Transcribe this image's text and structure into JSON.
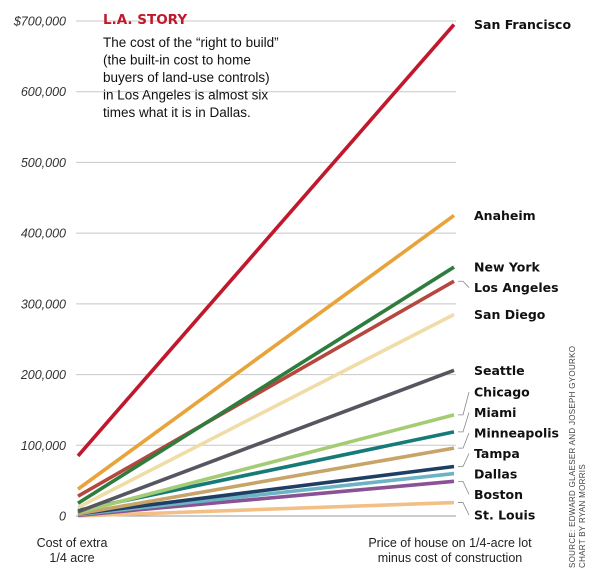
{
  "chart_data": {
    "type": "line",
    "title": "L.A. STORY",
    "subtitle_lines": [
      "The cost of the “right to build”",
      "(the built-in cost to home",
      "buyers of land-use controls)",
      "in Los Angeles is almost six",
      "times what it is in Dallas."
    ],
    "x_labels": {
      "left": [
        "Cost of extra",
        "1/4 acre"
      ],
      "right": [
        "Price of house on 1/4-acre lot",
        "minus cost of construction"
      ]
    },
    "ylim": [
      0,
      700000
    ],
    "y_ticks": [
      {
        "value": 700000,
        "label": "$700,000"
      },
      {
        "value": 600000,
        "label": "600,000"
      },
      {
        "value": 500000,
        "label": "500,000"
      },
      {
        "value": 400000,
        "label": "400,000"
      },
      {
        "value": 300000,
        "label": "300,000"
      },
      {
        "value": 200000,
        "label": "200,000"
      },
      {
        "value": 100000,
        "label": "100,000"
      },
      {
        "value": 0,
        "label": "0"
      }
    ],
    "series": [
      {
        "name": "San Francisco",
        "start": 85000,
        "end": 695000,
        "color": "#c0182c"
      },
      {
        "name": "Anaheim",
        "start": 38000,
        "end": 425000,
        "color": "#e8a33a"
      },
      {
        "name": "New York",
        "start": 18000,
        "end": 352000,
        "color": "#2e7d3e"
      },
      {
        "name": "Los Angeles",
        "start": 28000,
        "end": 332000,
        "color": "#b5473e"
      },
      {
        "name": "San Diego",
        "start": 12000,
        "end": 285000,
        "color": "#f0dca6"
      },
      {
        "name": "Seattle",
        "start": 6000,
        "end": 206000,
        "color": "#565660"
      },
      {
        "name": "Chicago",
        "start": 5000,
        "end": 143000,
        "color": "#a4cc74"
      },
      {
        "name": "Miami",
        "start": 8000,
        "end": 119000,
        "color": "#157a78"
      },
      {
        "name": "Minneapolis",
        "start": 3000,
        "end": 96000,
        "color": "#c7a468"
      },
      {
        "name": "Tampa",
        "start": 3000,
        "end": 70000,
        "color": "#1f3e63"
      },
      {
        "name": "Dallas",
        "start": 2000,
        "end": 60000,
        "color": "#6cb3c4"
      },
      {
        "name": "Boston",
        "start": 1000,
        "end": 49000,
        "color": "#8a5294"
      },
      {
        "name": "St. Louis",
        "start": 0,
        "end": 19000,
        "color": "#f2c086"
      }
    ],
    "end_labels": [
      "San Francisco",
      "Anaheim",
      "New York",
      "Los Angeles",
      "San Diego",
      "Seattle",
      "Chicago",
      "Miami",
      "Minneapolis",
      "Tampa",
      "Dallas",
      "Boston",
      "St. Louis"
    ],
    "source_lines": [
      "SOURCE: EDWARD GLAESER AND JOSEPH GYOURKO",
      "CHART BY RYAN MORRIS"
    ]
  }
}
